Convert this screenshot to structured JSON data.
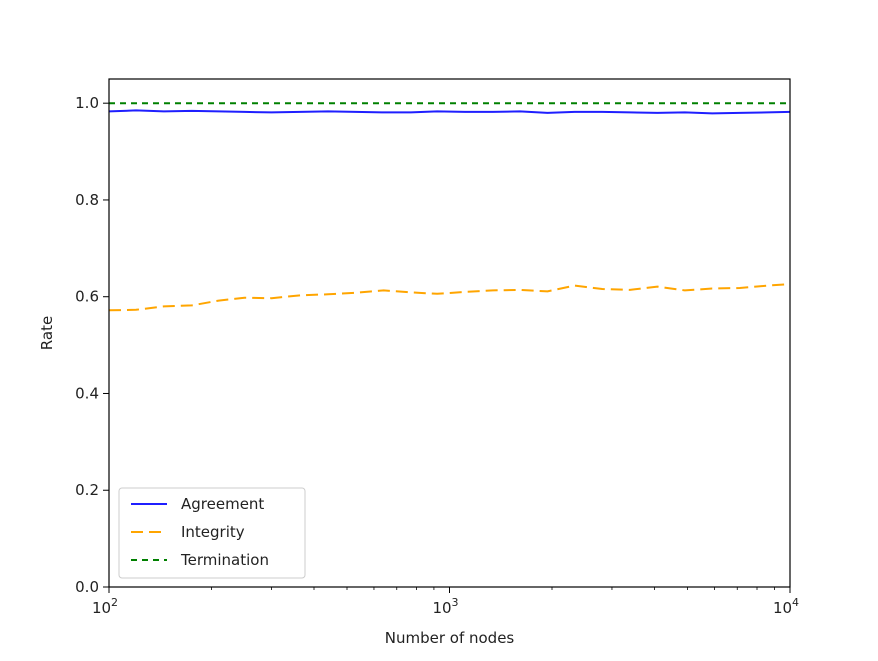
{
  "chart_data": {
    "type": "line",
    "title": "",
    "xlabel": "Number of nodes",
    "ylabel": "Rate",
    "x_scale": "log",
    "xlim": [
      100,
      10000
    ],
    "ylim": [
      0.0,
      1.05
    ],
    "x_ticks": [
      {
        "value": 100,
        "base": "10",
        "exp": "2"
      },
      {
        "value": 1000,
        "base": "10",
        "exp": "3"
      },
      {
        "value": 10000,
        "base": "10",
        "exp": "4"
      }
    ],
    "y_ticks": [
      {
        "value": 0.0,
        "label": "0.0"
      },
      {
        "value": 0.2,
        "label": "0.2"
      },
      {
        "value": 0.4,
        "label": "0.4"
      },
      {
        "value": 0.6,
        "label": "0.6"
      },
      {
        "value": 0.8,
        "label": "0.8"
      },
      {
        "value": 1.0,
        "label": "1.0"
      }
    ],
    "grid": false,
    "legend_position": "lower-left",
    "x": [
      100,
      120,
      145,
      175,
      210,
      250,
      300,
      365,
      440,
      530,
      640,
      770,
      920,
      1110,
      1340,
      1610,
      1940,
      2330,
      2810,
      3390,
      4080,
      4910,
      5910,
      7120,
      8580,
      10000
    ],
    "series": [
      {
        "name": "Agreement",
        "color": "#1f1fff",
        "dash": "solid",
        "values": [
          0.983,
          0.985,
          0.983,
          0.984,
          0.983,
          0.982,
          0.981,
          0.982,
          0.983,
          0.982,
          0.981,
          0.981,
          0.983,
          0.982,
          0.982,
          0.983,
          0.98,
          0.982,
          0.982,
          0.981,
          0.98,
          0.981,
          0.979,
          0.98,
          0.981,
          0.982
        ]
      },
      {
        "name": "Integrity",
        "color": "#ffa500",
        "dash": "long",
        "values": [
          0.572,
          0.573,
          0.58,
          0.582,
          0.592,
          0.598,
          0.597,
          0.603,
          0.605,
          0.608,
          0.613,
          0.609,
          0.606,
          0.61,
          0.613,
          0.614,
          0.611,
          0.623,
          0.616,
          0.614,
          0.621,
          0.613,
          0.617,
          0.618,
          0.623,
          0.626
        ]
      },
      {
        "name": "Termination",
        "color": "#008000",
        "dash": "short",
        "values": [
          1.0,
          1.0,
          1.0,
          1.0,
          1.0,
          1.0,
          1.0,
          1.0,
          1.0,
          1.0,
          1.0,
          1.0,
          1.0,
          1.0,
          1.0,
          1.0,
          1.0,
          1.0,
          1.0,
          1.0,
          1.0,
          1.0,
          1.0,
          1.0,
          1.0,
          1.0
        ]
      }
    ]
  }
}
